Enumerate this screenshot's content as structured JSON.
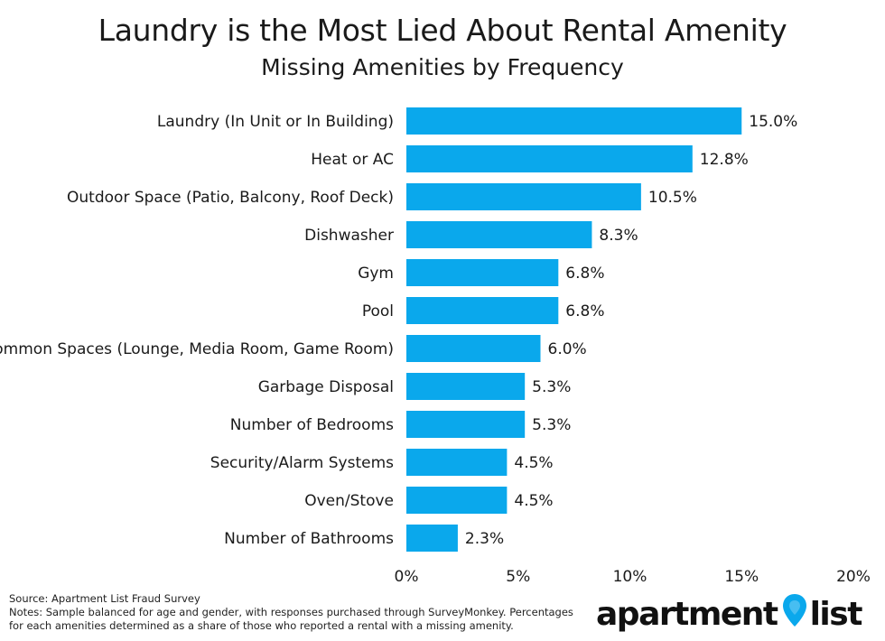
{
  "title": "Laundry is the Most Lied About Rental Amenity",
  "subtitle": "Missing Amenities by Frequency",
  "chart_data": {
    "type": "bar",
    "orientation": "horizontal",
    "title": "Laundry is the Most Lied About Rental Amenity",
    "subtitle": "Missing Amenities by Frequency",
    "categories": [
      "Laundry (In Unit or In Building)",
      "Heat or AC",
      "Outdoor Space (Patio, Balcony, Roof Deck)",
      "Dishwasher",
      "Gym",
      "Pool",
      "Common Spaces (Lounge, Media Room, Game Room)",
      "Garbage Disposal",
      "Number of Bedrooms",
      "Security/Alarm Systems",
      "Oven/Stove",
      "Number of Bathrooms"
    ],
    "values": [
      15.0,
      12.8,
      10.5,
      8.3,
      6.8,
      6.8,
      6.0,
      5.3,
      5.3,
      4.5,
      4.5,
      2.3
    ],
    "value_labels": [
      "15.0%",
      "12.8%",
      "10.5%",
      "8.3%",
      "6.8%",
      "6.8%",
      "6.0%",
      "5.3%",
      "5.3%",
      "4.5%",
      "4.5%",
      "2.3%"
    ],
    "xlim": [
      0,
      20
    ],
    "x_ticks": [
      0,
      5,
      10,
      15,
      20
    ],
    "x_tick_labels": [
      "0%",
      "5%",
      "10%",
      "15%",
      "20%"
    ],
    "xlabel": "",
    "ylabel": "",
    "grid": false,
    "legend": "none",
    "bar_color": "#0aa8ec"
  },
  "footer": {
    "source": "Source: Apartment List Fraud Survey",
    "notes": "Notes: Sample balanced for age and gender, with responses purchased through SurveyMonkey. Percentages for each amenities determined as a share of those who reported a rental with a missing amenity."
  },
  "logo": {
    "word1": "apartment",
    "word2": "list",
    "pin_color": "#0aa8ec",
    "icon": "map-pin-icon"
  }
}
